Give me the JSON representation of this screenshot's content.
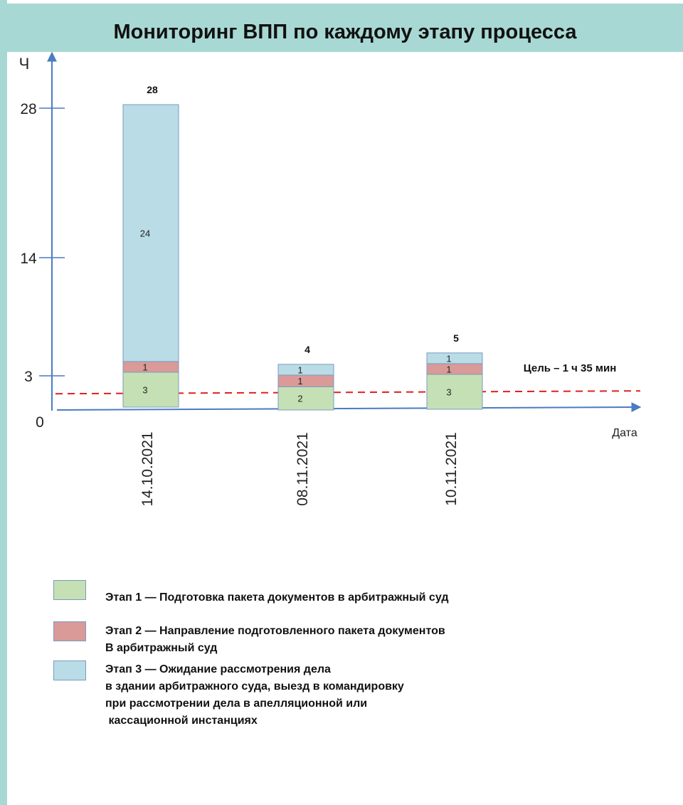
{
  "title": "Мониторинг ВПП по каждому этапу процесса",
  "colors": {
    "frame": "#a8d8d4",
    "axis": "#4a7cc0",
    "target_line": "#e02020",
    "stage1": "#c5e0b4",
    "stage2": "#d99a98",
    "stage3": "#b9dce6"
  },
  "chart_data": {
    "type": "bar",
    "stacked": true,
    "categories": [
      "14.10.2021",
      "08.11.2021",
      "10.11.2021"
    ],
    "series": [
      {
        "name": "Этап 1 — Подготовка пакета документов в арбитражный суд",
        "values": [
          3,
          2,
          3
        ]
      },
      {
        "name": "Этап 2 — Направление подготовленного пакета документов В арбитражный суд",
        "values": [
          1,
          1,
          1
        ]
      },
      {
        "name": "Этап 3 — Ожидание рассмотрения дела в здании арбитражного суда, выезд в командировку при рассмотрении дела в апелляционной или кассационной инстанциях",
        "values": [
          24,
          1,
          1
        ]
      }
    ],
    "totals": [
      28,
      4,
      5
    ],
    "ylabel": "Ч",
    "xlabel": "Дата",
    "y_ticks": [
      0,
      3,
      14,
      28
    ],
    "target": {
      "value": 1.58,
      "label": "Цель – 1 ч 35 мин"
    }
  },
  "legend": [
    {
      "lines": [
        "Этап 1 — Подготовка пакета документов в арбитражный суд"
      ]
    },
    {
      "lines": [
        "Этап 2 — Направление подготовленного пакета документов",
        "В арбитражный суд"
      ]
    },
    {
      "lines": [
        "Этап 3 — Ожидание рассмотрения дела",
        "в здании арбитражного суда, выезд в командировку",
        "при рассмотрении дела в апелляционной или",
        " кассационной инстанциях"
      ]
    }
  ]
}
